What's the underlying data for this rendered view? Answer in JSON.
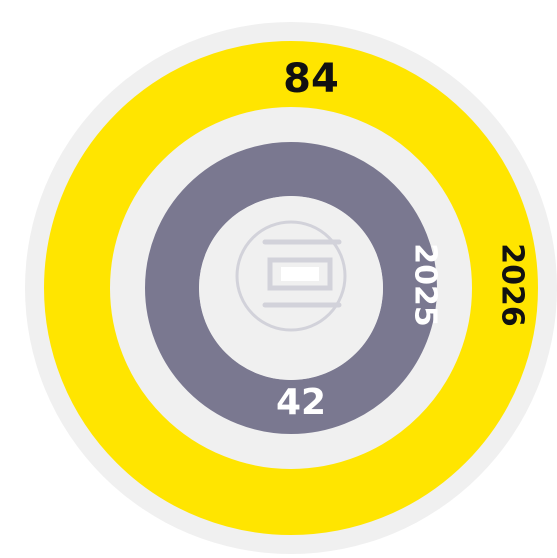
{
  "chart_data": {
    "type": "radial",
    "categories": [
      "2026",
      "2025"
    ],
    "values": [
      84,
      42
    ],
    "colors": [
      "#ffe500",
      "#7a7890"
    ]
  }
}
